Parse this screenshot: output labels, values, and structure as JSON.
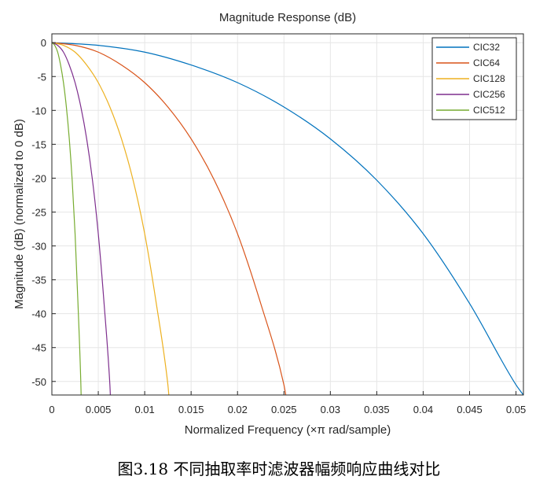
{
  "caption": "图3.18  不同抽取率时滤波器幅频响应曲线对比",
  "chart_data": {
    "type": "line",
    "title": "Magnitude Response (dB)",
    "xlabel": "Normalized Frequency (×π rad/sample)",
    "ylabel": "Magnitude (dB) (normalized to 0 dB)",
    "xlim": [
      0,
      0.0508
    ],
    "ylim": [
      -52,
      1.3
    ],
    "xticks": [
      0,
      0.005,
      0.01,
      0.015,
      0.02,
      0.025,
      0.03,
      0.035,
      0.04,
      0.045,
      0.05
    ],
    "xtick_labels": [
      "0",
      "0.005",
      "0.01",
      "0.015",
      "0.02",
      "0.025",
      "0.03",
      "0.035",
      "0.04",
      "0.045",
      "0.05"
    ],
    "yticks": [
      0,
      -5,
      -10,
      -15,
      -20,
      -25,
      -30,
      -35,
      -40,
      -45,
      -50
    ],
    "ytick_labels": [
      "0",
      "-5",
      "-10",
      "-15",
      "-20",
      "-25",
      "-30",
      "-35",
      "-40",
      "-45",
      "-50"
    ],
    "grid": true,
    "legend_position": "top-right",
    "series": [
      {
        "name": "CIC32",
        "color": "#0072BD",
        "x": [
          0,
          0.005,
          0.01,
          0.015,
          0.02,
          0.025,
          0.03,
          0.035,
          0.04,
          0.045,
          0.05,
          0.0508
        ],
        "y": [
          0,
          -0.4,
          -1.4,
          -3.3,
          -5.9,
          -9.5,
          -14.2,
          -20.3,
          -28.2,
          -38.5,
          -50.5,
          -52
        ]
      },
      {
        "name": "CIC64",
        "color": "#D95319",
        "x": [
          0,
          0.0025,
          0.005,
          0.0075,
          0.01,
          0.0125,
          0.015,
          0.0175,
          0.02,
          0.0225,
          0.025,
          0.0252
        ],
        "y": [
          0,
          -0.4,
          -1.4,
          -3.3,
          -5.9,
          -9.5,
          -14.2,
          -20.3,
          -28.2,
          -38.5,
          -50.5,
          -52
        ]
      },
      {
        "name": "CIC128",
        "color": "#EDB120",
        "x": [
          0,
          0.00125,
          0.0025,
          0.00375,
          0.005,
          0.00625,
          0.0075,
          0.00875,
          0.01,
          0.01125,
          0.0125,
          0.0126
        ],
        "y": [
          0,
          -0.4,
          -1.4,
          -3.3,
          -5.9,
          -9.5,
          -14.2,
          -20.3,
          -28.2,
          -38.5,
          -50.5,
          -52
        ]
      },
      {
        "name": "CIC256",
        "color": "#7E2F8E",
        "x": [
          0,
          0.000625,
          0.00125,
          0.001875,
          0.0025,
          0.003125,
          0.00375,
          0.004375,
          0.005,
          0.005625,
          0.00625,
          0.0063
        ],
        "y": [
          0,
          -0.4,
          -1.4,
          -3.3,
          -5.9,
          -9.5,
          -14.2,
          -20.3,
          -28.2,
          -38.5,
          -50.5,
          -52
        ]
      },
      {
        "name": "CIC512",
        "color": "#77AC30",
        "x": [
          0,
          0.0003125,
          0.000625,
          0.0009375,
          0.00125,
          0.0015625,
          0.001875,
          0.0021875,
          0.0025,
          0.0028125,
          0.003125,
          0.00315
        ],
        "y": [
          0,
          -0.4,
          -1.4,
          -3.3,
          -5.9,
          -9.5,
          -14.2,
          -20.3,
          -28.2,
          -38.5,
          -50.5,
          -52
        ]
      }
    ]
  }
}
